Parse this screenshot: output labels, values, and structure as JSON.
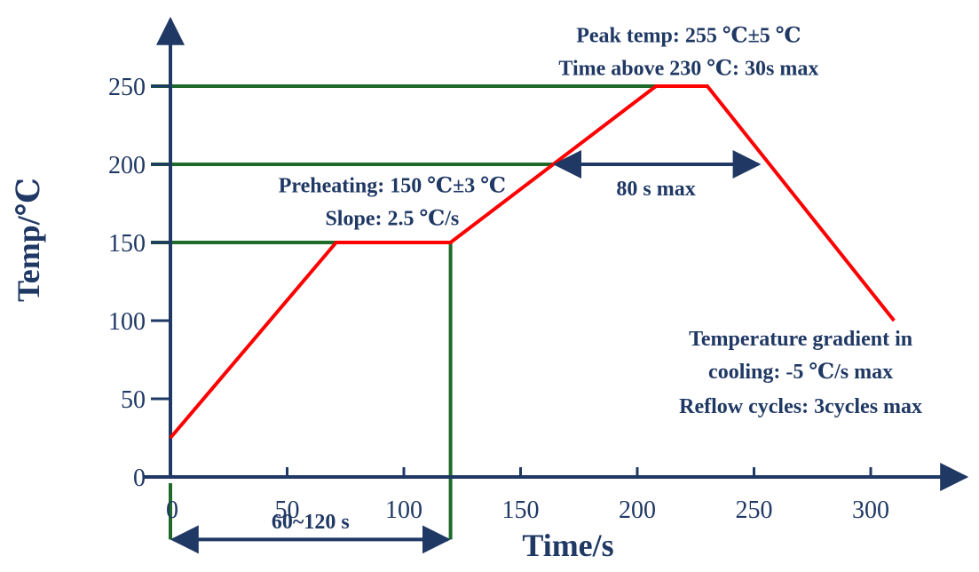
{
  "chart_data": {
    "type": "line",
    "xlabel": "Time/s",
    "ylabel": "Temp/℃",
    "xlim": [
      0,
      340
    ],
    "ylim": [
      0,
      290
    ],
    "x_ticks": [
      0,
      50,
      100,
      150,
      200,
      250,
      300
    ],
    "y_ticks": [
      0,
      50,
      100,
      150,
      200,
      250
    ],
    "grid": false,
    "series": [
      {
        "color": "#ff0000",
        "points": [
          {
            "x": 0,
            "y": 25
          },
          {
            "x": 71,
            "y": 150
          },
          {
            "x": 120,
            "y": 150
          },
          {
            "x": 208,
            "y": 250
          },
          {
            "x": 230,
            "y": 250
          },
          {
            "x": 310,
            "y": 100
          }
        ]
      }
    ],
    "reference_lines": {
      "color": "#1e6a2a",
      "horizontal": [
        {
          "y": 250,
          "x_end": 208
        },
        {
          "y": 200,
          "x_end": 164
        },
        {
          "y": 150,
          "x_end": 120
        }
      ],
      "vertical": [
        {
          "x": 120,
          "y_start": -40,
          "y_end": 150
        },
        {
          "x": 0,
          "y_start": -40,
          "y_end": -4
        }
      ]
    },
    "spans": [
      {
        "label": "80 s max",
        "x_start": 164,
        "x_end": 253,
        "y": 200,
        "label_x": 208,
        "label_y": 180
      },
      {
        "label": "60~120 s",
        "x_start": 0,
        "x_end": 120,
        "y": -40,
        "label_x": 60,
        "label_y": -33
      }
    ],
    "annotations": [
      {
        "text": "Peak temp: 255 ℃±5 ℃",
        "x": 222,
        "y": 278
      },
      {
        "text": "Time above 230 ℃: 30s max",
        "x": 222,
        "y": 257
      },
      {
        "text": "Preheating: 150 ℃±3 ℃",
        "x": 95,
        "y": 182
      },
      {
        "text": "Slope: 2.5 ℃/s",
        "x": 95,
        "y": 161
      },
      {
        "text": "Temperature gradient in",
        "x": 270,
        "y": 84
      },
      {
        "text": "cooling: -5 ℃/s max",
        "x": 270,
        "y": 63
      },
      {
        "text": "Reflow cycles: 3cycles max",
        "x": 270,
        "y": 41
      }
    ],
    "colors": {
      "axis": "#1f3864",
      "reference": "#1e6a2a",
      "curve": "#ff0000"
    }
  }
}
